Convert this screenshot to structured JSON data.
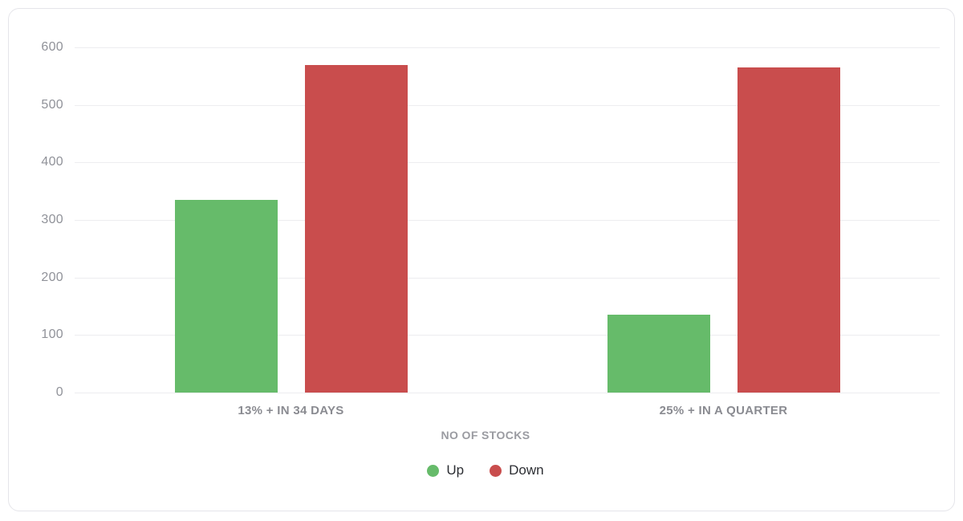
{
  "chart_data": {
    "type": "bar",
    "categories": [
      "13% + IN 34 DAYS",
      "25% + IN A QUARTER"
    ],
    "series": [
      {
        "name": "Up",
        "color": "#66bb6a",
        "values": [
          335,
          135
        ]
      },
      {
        "name": "Down",
        "color": "#c94d4d",
        "values": [
          570,
          565
        ]
      }
    ],
    "title": "",
    "xlabel": "NO OF STOCKS",
    "ylabel": "",
    "ylim": [
      0,
      600
    ],
    "yticks": [
      0,
      100,
      200,
      300,
      400,
      500,
      600
    ],
    "grid": true,
    "legend_position": "bottom"
  },
  "colors": {
    "grid": "#ededf0",
    "axis_text": "#909299",
    "card_border": "#e5e5ea"
  }
}
